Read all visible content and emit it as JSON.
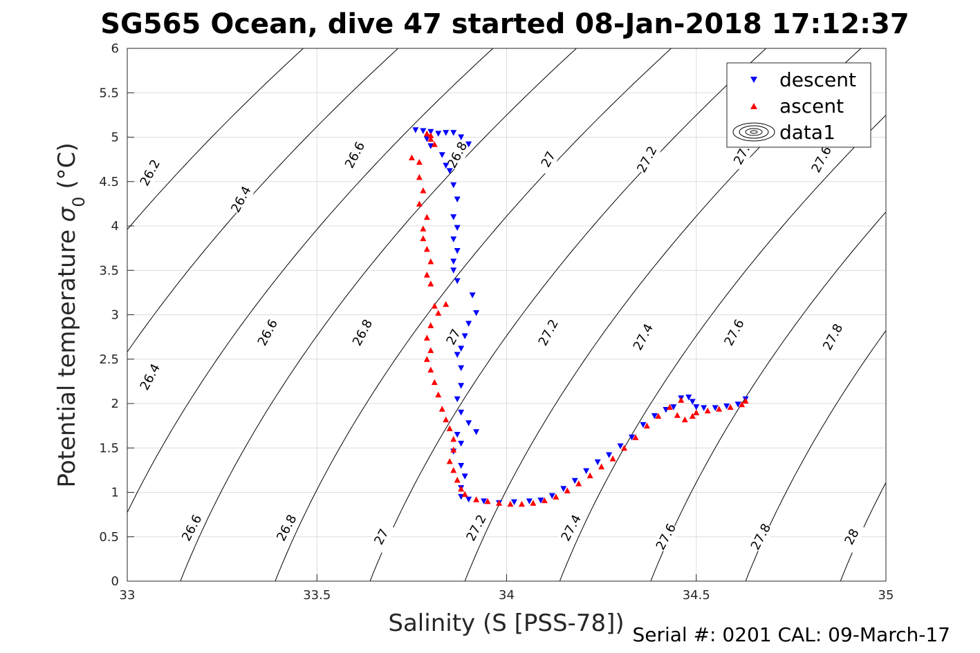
{
  "title": "SG565 Ocean, dive 47 started 08-Jan-2018 17:12:37",
  "footer": "Serial #: 0201  CAL: 09-March-17",
  "chart_data": {
    "type": "scatter",
    "xlabel": "Salinity (S [PSS-78])",
    "ylabel_main": "Potential temperature ",
    "ylabel_sigma": "σ",
    "ylabel_sub": "0",
    "ylabel_unit": " (°C)",
    "xlim": [
      33,
      35
    ],
    "ylim": [
      0,
      6
    ],
    "xticks": [
      "33",
      "33.5",
      "34",
      "34.5",
      "35"
    ],
    "yticks": [
      "0",
      "0.5",
      "1",
      "1.5",
      "2",
      "2.5",
      "3",
      "3.5",
      "4",
      "4.5",
      "5",
      "5.5",
      "6"
    ],
    "grid": true,
    "legend": {
      "position": "top-right",
      "entries": [
        "descent",
        "ascent",
        "data1"
      ]
    },
    "colors": {
      "descent": "#0000ff",
      "ascent": "#ff0000",
      "contour": "#000000",
      "grid": "#dcdcdc"
    },
    "contour_levels": [
      {
        "level": "26.2",
        "labels": [
          [
            33.06,
            4.6
          ]
        ]
      },
      {
        "level": "26.4",
        "labels": [
          [
            33.3,
            4.3
          ],
          [
            33.06,
            2.3
          ]
        ]
      },
      {
        "level": "26.6",
        "labels": [
          [
            33.6,
            4.8
          ],
          [
            33.37,
            2.8
          ],
          [
            33.17,
            0.6
          ]
        ]
      },
      {
        "level": "26.8",
        "labels": [
          [
            33.87,
            4.8
          ],
          [
            33.62,
            2.8
          ],
          [
            33.42,
            0.6
          ]
        ]
      },
      {
        "level": "27",
        "labels": [
          [
            34.11,
            4.75
          ],
          [
            33.86,
            2.75
          ],
          [
            33.67,
            0.5
          ]
        ]
      },
      {
        "level": "27.2",
        "labels": [
          [
            34.37,
            4.75
          ],
          [
            34.11,
            2.8
          ],
          [
            33.92,
            0.6
          ]
        ]
      },
      {
        "level": "27.4",
        "labels": [
          [
            34.36,
            2.75
          ],
          [
            34.17,
            0.6
          ]
        ]
      },
      {
        "level": "27.6",
        "labels": [
          [
            34.83,
            4.75
          ],
          [
            34.6,
            2.8
          ],
          [
            34.42,
            0.5
          ]
        ]
      },
      {
        "level": "27.8",
        "labels": [
          [
            34.86,
            2.75
          ],
          [
            34.67,
            0.5
          ]
        ]
      },
      {
        "level": "27.",
        "labels": [
          [
            34.62,
            4.8
          ]
        ]
      },
      {
        "level": "28",
        "labels": [
          [
            34.91,
            0.5
          ]
        ]
      }
    ],
    "series": [
      {
        "name": "descent",
        "marker": "triangle-down",
        "points": [
          [
            33.76,
            5.08
          ],
          [
            33.78,
            5.07
          ],
          [
            33.8,
            5.06
          ],
          [
            33.79,
            4.98
          ],
          [
            33.8,
            4.9
          ],
          [
            33.82,
            5.04
          ],
          [
            33.84,
            5.05
          ],
          [
            33.86,
            5.05
          ],
          [
            33.83,
            4.8
          ],
          [
            33.84,
            4.68
          ],
          [
            33.85,
            4.62
          ],
          [
            33.86,
            4.46
          ],
          [
            33.87,
            4.3
          ],
          [
            33.86,
            4.1
          ],
          [
            33.87,
            3.98
          ],
          [
            33.86,
            3.85
          ],
          [
            33.87,
            3.72
          ],
          [
            33.86,
            3.6
          ],
          [
            33.86,
            3.5
          ],
          [
            33.87,
            3.38
          ],
          [
            33.9,
            4.92
          ],
          [
            33.88,
            5.0
          ],
          [
            33.91,
            3.22
          ],
          [
            33.92,
            3.02
          ],
          [
            33.9,
            2.9
          ],
          [
            33.89,
            2.76
          ],
          [
            33.88,
            2.62
          ],
          [
            33.87,
            2.55
          ],
          [
            33.88,
            2.4
          ],
          [
            33.88,
            2.2
          ],
          [
            33.87,
            2.05
          ],
          [
            33.88,
            1.9
          ],
          [
            33.9,
            1.78
          ],
          [
            33.92,
            1.68
          ],
          [
            33.87,
            1.65
          ],
          [
            33.88,
            1.55
          ],
          [
            33.86,
            1.46
          ],
          [
            33.88,
            1.3
          ],
          [
            33.89,
            1.18
          ],
          [
            33.88,
            1.05
          ],
          [
            33.88,
            0.95
          ],
          [
            33.9,
            0.92
          ],
          [
            33.94,
            0.9
          ],
          [
            33.98,
            0.88
          ],
          [
            34.02,
            0.89
          ],
          [
            34.06,
            0.9
          ],
          [
            34.09,
            0.91
          ],
          [
            34.12,
            0.96
          ],
          [
            34.15,
            1.04
          ],
          [
            34.18,
            1.13
          ],
          [
            34.21,
            1.24
          ],
          [
            34.24,
            1.34
          ],
          [
            34.27,
            1.42
          ],
          [
            34.3,
            1.52
          ],
          [
            34.33,
            1.62
          ],
          [
            34.36,
            1.76
          ],
          [
            34.39,
            1.86
          ],
          [
            34.42,
            1.93
          ],
          [
            34.44,
            1.96
          ],
          [
            34.46,
            2.06
          ],
          [
            34.48,
            2.07
          ],
          [
            34.49,
            2.02
          ],
          [
            34.5,
            1.96
          ],
          [
            34.52,
            1.95
          ],
          [
            34.55,
            1.95
          ],
          [
            34.58,
            1.97
          ],
          [
            34.61,
            1.99
          ],
          [
            34.63,
            2.05
          ]
        ]
      },
      {
        "name": "ascent",
        "marker": "triangle-up",
        "points": [
          [
            33.75,
            4.77
          ],
          [
            33.77,
            4.72
          ],
          [
            33.77,
            4.55
          ],
          [
            33.78,
            4.4
          ],
          [
            33.77,
            4.25
          ],
          [
            33.79,
            4.1
          ],
          [
            33.78,
            3.97
          ],
          [
            33.78,
            3.86
          ],
          [
            33.79,
            3.74
          ],
          [
            33.8,
            3.6
          ],
          [
            33.79,
            3.45
          ],
          [
            33.8,
            3.35
          ],
          [
            33.81,
            3.1
          ],
          [
            33.82,
            3.02
          ],
          [
            33.84,
            3.12
          ],
          [
            33.8,
            2.88
          ],
          [
            33.79,
            2.74
          ],
          [
            33.8,
            2.6
          ],
          [
            33.79,
            2.5
          ],
          [
            33.8,
            2.38
          ],
          [
            33.81,
            2.24
          ],
          [
            33.82,
            2.1
          ],
          [
            33.83,
            1.94
          ],
          [
            33.84,
            1.82
          ],
          [
            33.85,
            1.72
          ],
          [
            33.86,
            1.6
          ],
          [
            33.86,
            1.48
          ],
          [
            33.85,
            1.35
          ],
          [
            33.86,
            1.25
          ],
          [
            33.87,
            1.14
          ],
          [
            33.88,
            1.04
          ],
          [
            33.89,
            0.98
          ],
          [
            33.92,
            0.92
          ],
          [
            33.95,
            0.9
          ],
          [
            33.98,
            0.88
          ],
          [
            34.01,
            0.87
          ],
          [
            34.04,
            0.87
          ],
          [
            34.07,
            0.88
          ],
          [
            34.1,
            0.91
          ],
          [
            34.13,
            0.95
          ],
          [
            34.16,
            1.02
          ],
          [
            34.19,
            1.1
          ],
          [
            34.22,
            1.19
          ],
          [
            34.25,
            1.29
          ],
          [
            34.28,
            1.38
          ],
          [
            34.31,
            1.5
          ],
          [
            34.34,
            1.62
          ],
          [
            34.37,
            1.75
          ],
          [
            34.4,
            1.86
          ],
          [
            34.43,
            1.96
          ],
          [
            34.46,
            2.04
          ],
          [
            34.45,
            1.87
          ],
          [
            34.47,
            1.82
          ],
          [
            34.49,
            1.86
          ],
          [
            34.5,
            1.9
          ],
          [
            34.53,
            1.92
          ],
          [
            34.56,
            1.94
          ],
          [
            34.59,
            1.96
          ],
          [
            34.62,
            1.99
          ],
          [
            34.63,
            2.03
          ],
          [
            33.79,
            5.04
          ],
          [
            33.8,
            4.98
          ],
          [
            33.81,
            4.92
          ],
          [
            33.8,
            5.02
          ]
        ]
      }
    ]
  }
}
